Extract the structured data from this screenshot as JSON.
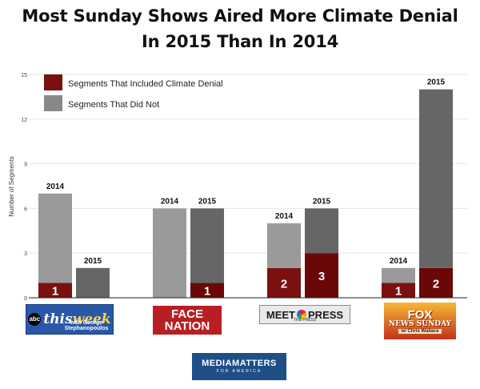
{
  "title": {
    "line1": "Most Sunday Shows Aired More Climate Denial",
    "line2": "In 2015 Than In 2014"
  },
  "colors": {
    "denial": "#7a1010",
    "denial_2015": "#6a0808",
    "other_2014": "#9a9a9a",
    "other_2015": "#666666",
    "grid": "#e6e6e6",
    "axis": "#222222"
  },
  "chart_data": {
    "type": "bar",
    "stacked": true,
    "title": "Most Sunday Shows Aired More Climate Denial In 2015 Than In 2014",
    "ylabel": "Number of Segments",
    "xlabel": "",
    "ylim": [
      0,
      15
    ],
    "yticks": [
      0,
      3,
      6,
      9,
      12,
      15
    ],
    "grid": true,
    "legend": {
      "position": "top-left",
      "entries": [
        "Segments That Included Climate Denial",
        "Segments That Did Not"
      ]
    },
    "shows": [
      "This Week with George Stephanopoulos",
      "Face the Nation",
      "Meet the Press",
      "Fox News Sunday with Chris Wallace"
    ],
    "categories": [
      "2014",
      "2015",
      "2014",
      "2015",
      "2014",
      "2015",
      "2014",
      "2015"
    ],
    "series": [
      {
        "name": "Segments That Included Climate Denial",
        "values": [
          1,
          0,
          0,
          1,
          2,
          3,
          1,
          2
        ]
      },
      {
        "name": "Segments That Did Not",
        "values": [
          6,
          2,
          6,
          5,
          3,
          3,
          1,
          12
        ]
      }
    ],
    "data_labels": [
      "1",
      "",
      "",
      "1",
      "2",
      "3",
      "1",
      "2"
    ]
  },
  "logos": {
    "this_week": {
      "abc": "abc",
      "name": "this",
      "name_em": "week",
      "sub": "with George Stephanopoulos"
    },
    "face_the_nation": {
      "line1": "FACE",
      "line2": "NATION"
    },
    "meet_the_press": {
      "left": "MEET",
      "right": "PRESS",
      "tagline": "THE PRESS"
    },
    "fox_news_sunday": {
      "line1": "FOX",
      "line2": "NEWS SUNDAY",
      "line3": "w/ Chris Wallace"
    },
    "media_matters": {
      "line1": "MEDIAMATTERS",
      "line2": "FOR AMERICA"
    }
  }
}
